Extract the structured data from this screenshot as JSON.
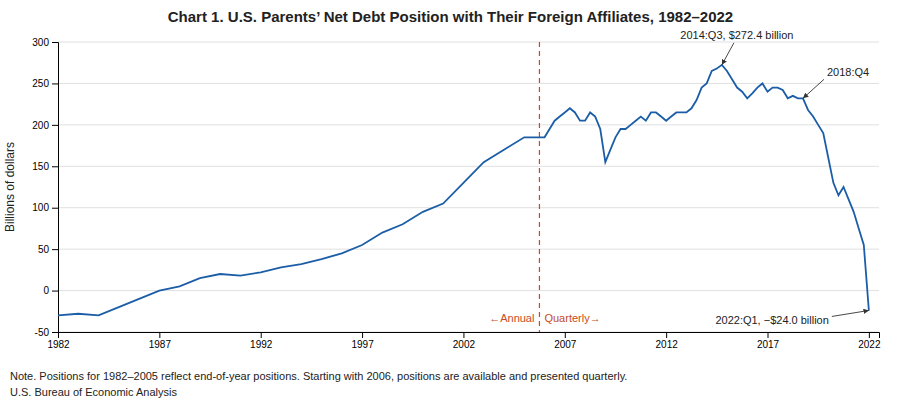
{
  "chart_data": {
    "type": "line",
    "title": "Chart 1. U.S. Parents’ Net Debt Position with Their Foreign Affiliates, 1982–2022",
    "y_label": "Billions of dollars",
    "note": "Note. Positions for 1982–2005 reflect end-of-year positions. Starting with 2006, positions are available and presented quarterly.",
    "source": "U.S. Bureau of Economic Analysis",
    "color": "#1B5EA7",
    "x": [
      1982,
      1983,
      1984,
      1985,
      1986,
      1987,
      1988,
      1989,
      1990,
      1991,
      1992,
      1993,
      1994,
      1995,
      1996,
      1997,
      1998,
      1999,
      2000,
      2001,
      2002,
      2003,
      2004,
      2005,
      2006.0,
      2006.25,
      2006.5,
      2006.75,
      2007.0,
      2007.25,
      2007.5,
      2007.75,
      2008.0,
      2008.25,
      2008.5,
      2008.75,
      2009.0,
      2009.25,
      2009.5,
      2009.75,
      2010.0,
      2010.25,
      2010.5,
      2010.75,
      2011.0,
      2011.25,
      2011.5,
      2011.75,
      2012.0,
      2012.25,
      2012.5,
      2012.75,
      2013.0,
      2013.25,
      2013.5,
      2013.75,
      2014.0,
      2014.25,
      2014.5,
      2014.75,
      2015.0,
      2015.25,
      2015.5,
      2015.75,
      2016.0,
      2016.25,
      2016.5,
      2016.75,
      2017.0,
      2017.25,
      2017.5,
      2017.75,
      2018.0,
      2018.25,
      2018.5,
      2018.75,
      2019.0,
      2019.25,
      2019.5,
      2019.75,
      2020.0,
      2020.25,
      2020.5,
      2020.75,
      2021.0,
      2021.25,
      2021.5,
      2021.75,
      2022.0
    ],
    "values": [
      -30,
      -28,
      -30,
      -20,
      -10,
      0,
      5,
      15,
      20,
      18,
      22,
      28,
      32,
      38,
      45,
      55,
      70,
      80,
      95,
      105,
      130,
      155,
      170,
      185,
      185,
      195,
      205,
      210,
      215,
      220,
      215,
      205,
      205,
      215,
      210,
      195,
      155,
      170,
      185,
      195,
      195,
      200,
      205,
      210,
      205,
      215,
      215,
      210,
      205,
      210,
      215,
      215,
      215,
      220,
      230,
      245,
      250,
      265,
      268,
      272.4,
      265,
      255,
      245,
      240,
      232,
      238,
      245,
      250,
      240,
      245,
      245,
      242,
      232,
      235,
      232,
      232,
      218,
      210,
      200,
      190,
      160,
      130,
      115,
      125,
      110,
      95,
      75,
      55,
      -24
    ],
    "vertical_line": {
      "x": 2005.75,
      "color": "#C84B1A",
      "line_style": "dashed",
      "labels": [
        "←Annual",
        "Quarterly→"
      ]
    },
    "annotations": [
      {
        "x": 2014.75,
        "y": 272.4,
        "text": "2014:Q3, $272.4 billion"
      },
      {
        "x": 2018.75,
        "y": 232.0,
        "text": "2018:Q4"
      },
      {
        "x": 2022.0,
        "y": -24.0,
        "text": "2022:Q1, −$24.0 billion"
      }
    ],
    "xlim": [
      1982,
      2022.5
    ],
    "ylim": [
      -50,
      300
    ],
    "xticks": [
      1982,
      1987,
      1992,
      1997,
      2002,
      2007,
      2012,
      2017,
      2022
    ],
    "yticks": [
      -50,
      0,
      50,
      100,
      150,
      200,
      250,
      300
    ],
    "grid": true
  }
}
